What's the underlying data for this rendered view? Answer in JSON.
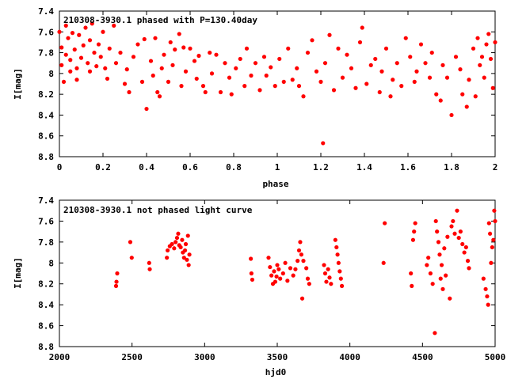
{
  "marker_color": "#ff0000",
  "chart_data": [
    {
      "type": "scatter",
      "title": "210308-3930.1 phased with P=130.40day",
      "xlabel": "phase",
      "ylabel": "I[mag]",
      "xlim": [
        0,
        2
      ],
      "ylim": [
        7.4,
        8.8
      ],
      "y_inverted": true,
      "grid": false,
      "x_ticks": [
        "0",
        "0.2",
        "0.4",
        "0.6",
        "0.8",
        "1",
        "1.2",
        "1.4",
        "1.6",
        "1.8",
        "2"
      ],
      "y_ticks": [
        "7.4",
        "7.6",
        "7.8",
        "8",
        "8.2",
        "8.4",
        "8.6",
        "8.8"
      ],
      "series": [
        {
          "points": [
            [
              0.0,
              7.6
            ],
            [
              0.01,
              7.75
            ],
            [
              0.01,
              7.92
            ],
            [
              0.02,
              8.08
            ],
            [
              0.03,
              7.54
            ],
            [
              0.03,
              7.82
            ],
            [
              0.04,
              7.66
            ],
            [
              0.05,
              7.98
            ],
            [
              0.05,
              7.87
            ],
            [
              0.06,
              7.61
            ],
            [
              0.07,
              7.77
            ],
            [
              0.08,
              7.95
            ],
            [
              0.08,
              8.06
            ],
            [
              0.09,
              7.63
            ],
            [
              0.1,
              7.85
            ],
            [
              0.11,
              7.73
            ],
            [
              0.12,
              7.56
            ],
            [
              0.13,
              7.9
            ],
            [
              0.14,
              7.98
            ],
            [
              0.14,
              7.68
            ],
            [
              0.15,
              7.52
            ],
            [
              0.16,
              7.8
            ],
            [
              0.17,
              7.93
            ],
            [
              0.18,
              7.72
            ],
            [
              0.19,
              7.84
            ],
            [
              0.2,
              7.6
            ],
            [
              0.21,
              7.95
            ],
            [
              0.22,
              8.05
            ],
            [
              0.23,
              7.76
            ],
            [
              0.25,
              7.54
            ],
            [
              0.26,
              7.9
            ],
            [
              0.28,
              7.8
            ],
            [
              0.3,
              8.1
            ],
            [
              0.31,
              7.96
            ],
            [
              0.32,
              8.18
            ],
            [
              0.34,
              7.84
            ],
            [
              0.36,
              7.72
            ],
            [
              0.38,
              8.08
            ],
            [
              0.39,
              7.67
            ],
            [
              0.4,
              8.34
            ],
            [
              0.42,
              7.88
            ],
            [
              0.43,
              8.02
            ],
            [
              0.44,
              7.66
            ],
            [
              0.45,
              8.18
            ],
            [
              0.46,
              8.22
            ],
            [
              0.47,
              7.95
            ],
            [
              0.48,
              7.82
            ],
            [
              0.5,
              8.08
            ],
            [
              0.51,
              7.7
            ],
            [
              0.52,
              7.92
            ],
            [
              0.53,
              7.77
            ],
            [
              0.55,
              7.62
            ],
            [
              0.56,
              8.12
            ],
            [
              0.57,
              7.75
            ],
            [
              0.58,
              7.98
            ],
            [
              0.6,
              7.76
            ],
            [
              0.62,
              7.88
            ],
            [
              0.63,
              8.05
            ],
            [
              0.64,
              7.83
            ],
            [
              0.66,
              8.12
            ],
            [
              0.67,
              8.18
            ],
            [
              0.69,
              7.8
            ],
            [
              0.7,
              8.0
            ],
            [
              0.72,
              7.82
            ],
            [
              0.74,
              8.18
            ],
            [
              0.76,
              7.9
            ],
            [
              0.78,
              8.04
            ],
            [
              0.79,
              8.2
            ],
            [
              0.81,
              7.95
            ],
            [
              0.83,
              7.86
            ],
            [
              0.85,
              8.12
            ],
            [
              0.86,
              7.76
            ],
            [
              0.88,
              8.02
            ],
            [
              0.9,
              7.9
            ],
            [
              0.92,
              8.16
            ],
            [
              0.94,
              7.84
            ],
            [
              0.95,
              8.02
            ],
            [
              0.97,
              7.94
            ],
            [
              0.99,
              8.12
            ],
            [
              1.01,
              7.86
            ],
            [
              1.03,
              8.08
            ],
            [
              1.05,
              7.76
            ],
            [
              1.07,
              8.06
            ],
            [
              1.09,
              7.95
            ],
            [
              1.1,
              8.12
            ],
            [
              1.12,
              8.22
            ],
            [
              1.14,
              7.8
            ],
            [
              1.16,
              7.68
            ],
            [
              1.18,
              7.98
            ],
            [
              1.2,
              8.08
            ],
            [
              1.21,
              8.67
            ],
            [
              1.22,
              7.9
            ],
            [
              1.24,
              7.63
            ],
            [
              1.26,
              8.16
            ],
            [
              1.28,
              7.76
            ],
            [
              1.3,
              8.04
            ],
            [
              1.32,
              7.82
            ],
            [
              1.34,
              7.95
            ],
            [
              1.36,
              8.14
            ],
            [
              1.38,
              7.7
            ],
            [
              1.39,
              7.56
            ],
            [
              1.41,
              8.1
            ],
            [
              1.43,
              7.92
            ],
            [
              1.45,
              7.86
            ],
            [
              1.47,
              8.18
            ],
            [
              1.48,
              7.98
            ],
            [
              1.5,
              7.76
            ],
            [
              1.52,
              8.22
            ],
            [
              1.53,
              8.06
            ],
            [
              1.55,
              7.9
            ],
            [
              1.57,
              8.12
            ],
            [
              1.59,
              7.66
            ],
            [
              1.61,
              7.84
            ],
            [
              1.63,
              8.08
            ],
            [
              1.64,
              7.98
            ],
            [
              1.66,
              7.72
            ],
            [
              1.68,
              7.9
            ],
            [
              1.7,
              8.04
            ],
            [
              1.71,
              7.8
            ],
            [
              1.73,
              8.2
            ],
            [
              1.75,
              8.26
            ],
            [
              1.76,
              7.92
            ],
            [
              1.78,
              8.04
            ],
            [
              1.8,
              8.4
            ],
            [
              1.82,
              7.84
            ],
            [
              1.84,
              7.96
            ],
            [
              1.85,
              8.2
            ],
            [
              1.87,
              8.32
            ],
            [
              1.88,
              8.06
            ],
            [
              1.9,
              7.76
            ],
            [
              1.91,
              8.22
            ],
            [
              1.92,
              7.66
            ],
            [
              1.93,
              7.92
            ],
            [
              1.94,
              7.84
            ],
            [
              1.95,
              8.04
            ],
            [
              1.96,
              7.72
            ],
            [
              1.97,
              7.62
            ],
            [
              1.98,
              7.86
            ],
            [
              1.99,
              8.14
            ],
            [
              2.0,
              7.7
            ]
          ]
        }
      ]
    },
    {
      "type": "scatter",
      "title": "210308-3930.1 not phased light curve",
      "xlabel": "hjd0",
      "ylabel": "I[mag]",
      "xlim": [
        2000,
        5000
      ],
      "ylim": [
        7.4,
        8.8
      ],
      "y_inverted": true,
      "grid": false,
      "x_ticks": [
        "2000",
        "2500",
        "3000",
        "3500",
        "4000",
        "4500",
        "5000"
      ],
      "y_ticks": [
        "7.4",
        "7.6",
        "7.8",
        "8",
        "8.2",
        "8.4",
        "8.6",
        "8.8"
      ],
      "series": [
        {
          "points": [
            [
              2390,
              8.22
            ],
            [
              2393,
              8.18
            ],
            [
              2398,
              8.1
            ],
            [
              2488,
              7.8
            ],
            [
              2498,
              7.95
            ],
            [
              2618,
              8.0
            ],
            [
              2622,
              8.06
            ],
            [
              2740,
              7.95
            ],
            [
              2745,
              7.88
            ],
            [
              2760,
              7.84
            ],
            [
              2775,
              7.82
            ],
            [
              2790,
              7.86
            ],
            [
              2800,
              7.8
            ],
            [
              2810,
              7.76
            ],
            [
              2818,
              7.72
            ],
            [
              2825,
              7.83
            ],
            [
              2835,
              7.85
            ],
            [
              2845,
              7.78
            ],
            [
              2850,
              7.9
            ],
            [
              2858,
              7.95
            ],
            [
              2865,
              7.88
            ],
            [
              2870,
              7.82
            ],
            [
              2878,
              7.97
            ],
            [
              2885,
              7.74
            ],
            [
              2890,
              8.02
            ],
            [
              2895,
              7.92
            ],
            [
              3318,
              7.96
            ],
            [
              3322,
              8.1
            ],
            [
              3328,
              8.16
            ],
            [
              3440,
              7.95
            ],
            [
              3450,
              8.04
            ],
            [
              3460,
              8.12
            ],
            [
              3470,
              8.2
            ],
            [
              3478,
              8.08
            ],
            [
              3486,
              8.18
            ],
            [
              3495,
              8.13
            ],
            [
              3500,
              8.02
            ],
            [
              3510,
              8.06
            ],
            [
              3520,
              8.15
            ],
            [
              3540,
              8.1
            ],
            [
              3555,
              8.0
            ],
            [
              3570,
              8.17
            ],
            [
              3590,
              8.05
            ],
            [
              3610,
              8.12
            ],
            [
              3625,
              8.06
            ],
            [
              3640,
              7.98
            ],
            [
              3650,
              7.88
            ],
            [
              3658,
              7.8
            ],
            [
              3666,
              7.92
            ],
            [
              3672,
              8.34
            ],
            [
              3680,
              7.98
            ],
            [
              3700,
              8.05
            ],
            [
              3710,
              8.15
            ],
            [
              3720,
              8.2
            ],
            [
              3822,
              8.02
            ],
            [
              3830,
              8.1
            ],
            [
              3838,
              8.18
            ],
            [
              3850,
              8.06
            ],
            [
              3860,
              8.14
            ],
            [
              3870,
              8.2
            ],
            [
              3900,
              7.78
            ],
            [
              3908,
              7.85
            ],
            [
              3915,
              7.92
            ],
            [
              3922,
              8.0
            ],
            [
              3930,
              8.08
            ],
            [
              3938,
              8.15
            ],
            [
              3945,
              8.22
            ],
            [
              4232,
              8.0
            ],
            [
              4240,
              7.62
            ],
            [
              4420,
              8.1
            ],
            [
              4426,
              8.22
            ],
            [
              4435,
              7.78
            ],
            [
              4442,
              7.7
            ],
            [
              4450,
              7.62
            ],
            [
              4530,
              8.02
            ],
            [
              4540,
              7.95
            ],
            [
              4555,
              8.1
            ],
            [
              4570,
              8.2
            ],
            [
              4585,
              8.67
            ],
            [
              4592,
              7.6
            ],
            [
              4600,
              7.7
            ],
            [
              4610,
              7.8
            ],
            [
              4618,
              7.92
            ],
            [
              4625,
              8.15
            ],
            [
              4632,
              8.02
            ],
            [
              4640,
              8.25
            ],
            [
              4650,
              7.86
            ],
            [
              4660,
              8.12
            ],
            [
              4672,
              7.75
            ],
            [
              4688,
              8.34
            ],
            [
              4700,
              7.65
            ],
            [
              4710,
              7.6
            ],
            [
              4722,
              7.72
            ],
            [
              4738,
              7.5
            ],
            [
              4750,
              7.76
            ],
            [
              4762,
              7.7
            ],
            [
              4775,
              7.82
            ],
            [
              4788,
              7.9
            ],
            [
              4800,
              7.85
            ],
            [
              4812,
              7.98
            ],
            [
              4820,
              8.05
            ],
            [
              4920,
              8.15
            ],
            [
              4935,
              8.25
            ],
            [
              4945,
              8.32
            ],
            [
              4952,
              8.4
            ],
            [
              4958,
              7.62
            ],
            [
              4965,
              7.72
            ],
            [
              4972,
              8.0
            ],
            [
              4980,
              7.85
            ],
            [
              4988,
              7.78
            ],
            [
              4994,
              7.5
            ],
            [
              5000,
              7.6
            ]
          ]
        }
      ]
    }
  ]
}
